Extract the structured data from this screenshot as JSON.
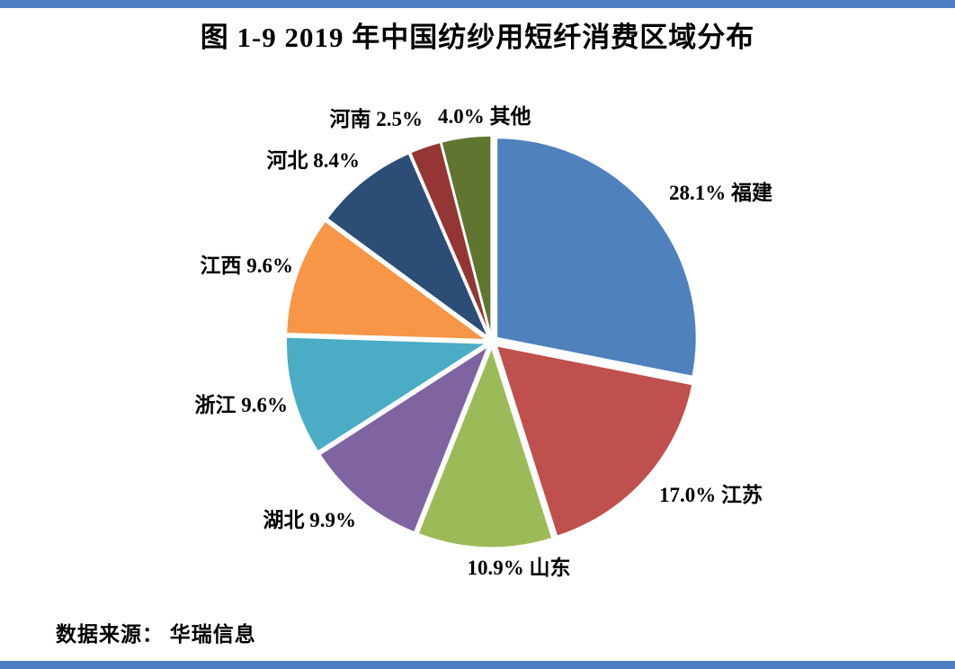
{
  "page": {
    "title": "图 1-9 2019 年中国纺纱用短纤消费区域分布",
    "source": "数据来源： 华瑞信息",
    "border_color": "#4d7cc0",
    "background_color": "#ffffff"
  },
  "chart_data": {
    "type": "pie",
    "title": "图 1-9 2019 年中国纺纱用短纤消费区域分布",
    "unit": "%",
    "start_angle_deg": 0,
    "direction": "clockwise",
    "exploded": true,
    "legend_position": "none",
    "source": "数据来源： 华瑞信息",
    "slices": [
      {
        "name": "福建",
        "value": 28.1,
        "label": "28.1%  福建",
        "color": "#4F81BD"
      },
      {
        "name": "江苏",
        "value": 17.0,
        "label": "17.0%  江苏",
        "color": "#C0504D"
      },
      {
        "name": "山东",
        "value": 10.9,
        "label": "10.9%  山东",
        "color": "#9BBB59"
      },
      {
        "name": "湖北",
        "value": 9.9,
        "label": "湖北 9.9%",
        "color": "#8064A2"
      },
      {
        "name": "浙江",
        "value": 9.6,
        "label": "浙江 9.6%",
        "color": "#4BACC6"
      },
      {
        "name": "江西",
        "value": 9.6,
        "label": "江西 9.6%",
        "color": "#F79646"
      },
      {
        "name": "河北",
        "value": 8.4,
        "label": "河北 8.4%",
        "color": "#2C4D75"
      },
      {
        "name": "河南",
        "value": 2.5,
        "label": "河南 2.5%",
        "color": "#943634"
      },
      {
        "name": "其他",
        "value": 4.0,
        "label": "4.0% 其他",
        "color": "#5F7530"
      }
    ]
  }
}
